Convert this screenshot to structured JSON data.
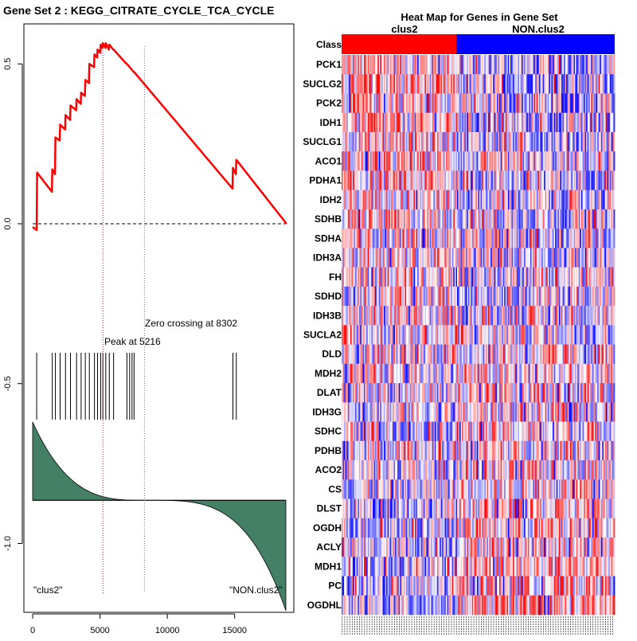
{
  "chart_data": [
    {
      "type": "line",
      "name": "enrichment-score-plot",
      "title": "Gene Set  2 : KEGG_CITRATE_CYCLE_TCA_CYCLE",
      "xlabel": "",
      "ylabel": "",
      "xlim": [
        0,
        18800
      ],
      "ylim": [
        -1.22,
        0.6
      ],
      "x_ticks": [
        0,
        5000,
        10000,
        15000
      ],
      "x_tick_labels": [
        "0",
        "5000",
        "10000",
        "15000"
      ],
      "y_ticks": [
        0.5,
        0.0,
        -0.5,
        -1.0
      ],
      "y_tick_labels": [
        "0.5",
        "0.0",
        "-0.5",
        "-1.0"
      ],
      "series": [
        {
          "name": "running enrichment score",
          "color": "#ff0000",
          "x": [
            0,
            300,
            330,
            1430,
            1460,
            1660,
            1690,
            2010,
            2040,
            2410,
            2440,
            2780,
            2810,
            3230,
            3260,
            3570,
            3600,
            3880,
            3910,
            4180,
            4210,
            4560,
            4590,
            4790,
            4820,
            5020,
            5050,
            5190,
            5216,
            5400,
            5430,
            5660,
            5690,
            5980,
            6010,
            6970,
            7000,
            7500,
            7530,
            14840,
            14870,
            15090,
            15120,
            18850
          ],
          "y": [
            -0.01,
            -0.02,
            0.16,
            0.1,
            0.17,
            0.155,
            0.27,
            0.26,
            0.31,
            0.295,
            0.34,
            0.325,
            0.37,
            0.355,
            0.39,
            0.375,
            0.41,
            0.4,
            0.45,
            0.44,
            0.5,
            0.49,
            0.53,
            0.52,
            0.545,
            0.535,
            0.56,
            0.55,
            0.565,
            0.55,
            0.565,
            0.545,
            0.56,
            0.545,
            0.545,
            0.5,
            0.5,
            0.475,
            0.475,
            0.11,
            0.175,
            0.155,
            0.2,
            0.0
          ]
        }
      ],
      "reference_line": {
        "y": 0.0,
        "style": "dashed",
        "color": "#000000"
      },
      "peak": {
        "label": "Peak at 5216",
        "x": 5216,
        "color": "#ff0000"
      },
      "zero_crossing": {
        "label": "Zero crossing at 8302",
        "x": 8302,
        "color": "#00cc00"
      },
      "hits": [
        300,
        1460,
        1690,
        2040,
        2440,
        2810,
        3260,
        3600,
        3910,
        4210,
        4590,
        4820,
        5050,
        5216,
        5430,
        5690,
        6010,
        7000,
        7200,
        7380,
        7530,
        14870,
        15120
      ],
      "metric_profile": {
        "color": "#448066",
        "baseline": -0.865,
        "start": -0.62,
        "end": -1.21,
        "positive_label": "\"clus2\"",
        "negative_label": "\"NON.clus2\""
      }
    },
    {
      "type": "heatmap",
      "name": "gene-heatmap",
      "title": "Heat Map for Genes in Gene Set",
      "class_row_label": "Class",
      "classes": [
        {
          "name": "clus2",
          "color": "#ff0000",
          "fraction": 0.42
        },
        {
          "name": "NON.clus2",
          "color": "#0000ff",
          "fraction": 0.58
        }
      ],
      "genes": [
        "PCK1",
        "SUCLG2",
        "PCK2",
        "IDH1",
        "SUCLG1",
        "ACO1",
        "PDHA1",
        "IDH2",
        "SDHB",
        "SDHA",
        "IDH3A",
        "FH",
        "SDHD",
        "IDH3B",
        "SUCLA2",
        "DLD",
        "MDH2",
        "DLAT",
        "IDH3G",
        "SDHC",
        "PDHB",
        "ACO2",
        "CS",
        "DLST",
        "OGDH",
        "ACLY",
        "MDH1",
        "PC",
        "OGDHL"
      ],
      "color_scale": {
        "low": "#0000ff",
        "mid": "#ffffff",
        "high": "#ff0000"
      },
      "column_count": 220
    }
  ]
}
